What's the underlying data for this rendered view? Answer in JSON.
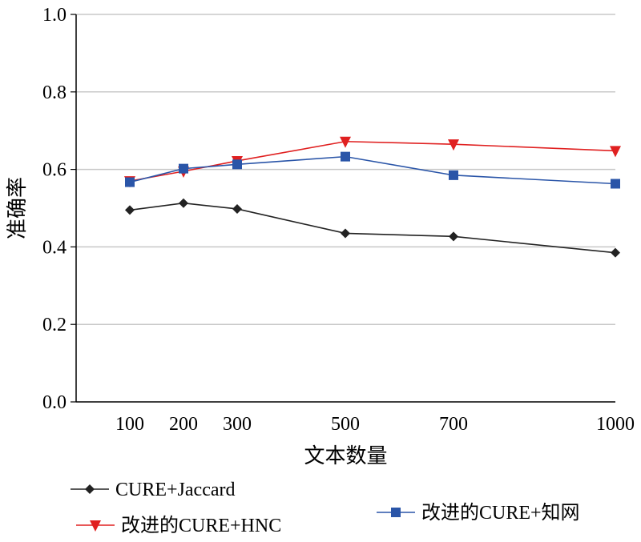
{
  "chart_data": {
    "type": "line",
    "title": "",
    "xlabel": "文本数量",
    "ylabel": "准确率",
    "x": [
      100,
      200,
      300,
      500,
      700,
      1000
    ],
    "xticks": [
      "100",
      "200",
      "300",
      "500",
      "700",
      "1000"
    ],
    "ylim": [
      0.0,
      1.0
    ],
    "yticks": [
      "0.0",
      "0.2",
      "0.4",
      "0.6",
      "0.8",
      "1.0"
    ],
    "grid": true,
    "legend_position": "bottom",
    "series": [
      {
        "name": "CURE+Jaccard",
        "values": [
          0.495,
          0.513,
          0.498,
          0.435,
          0.427,
          0.385
        ],
        "color": "#222222",
        "marker": "diamond"
      },
      {
        "name": "改进的CURE+HNC",
        "values": [
          0.57,
          0.595,
          0.622,
          0.672,
          0.665,
          0.648
        ],
        "color": "#e02020",
        "marker": "triangle-down"
      },
      {
        "name": "改进的CURE+知网",
        "values": [
          0.567,
          0.602,
          0.613,
          0.633,
          0.585,
          0.563
        ],
        "color": "#2a55a8",
        "marker": "square"
      }
    ]
  }
}
